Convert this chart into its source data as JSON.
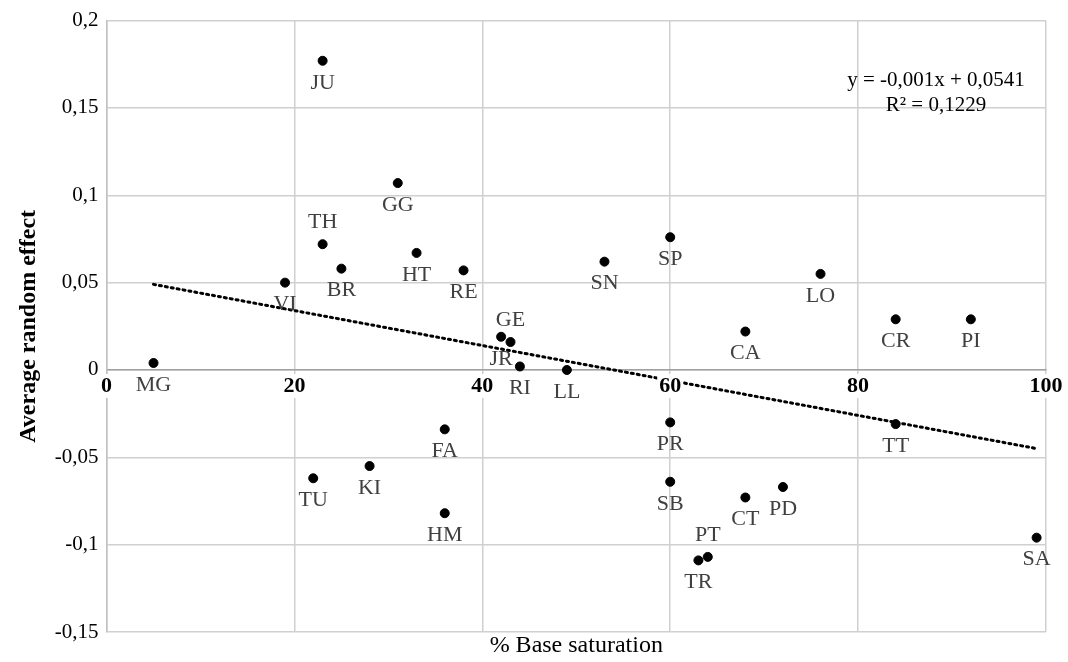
{
  "chart_data": {
    "type": "scatter",
    "xlabel": "% Base saturation",
    "ylabel": "Average random effect",
    "xlim": [
      0,
      100
    ],
    "xticks": [
      0,
      20,
      40,
      60,
      80,
      100
    ],
    "ylim": [
      -0.15,
      0.2
    ],
    "yticks": [
      {
        "value": -0.15,
        "label": "-0,15"
      },
      {
        "value": -0.1,
        "label": "-0,1"
      },
      {
        "value": -0.05,
        "label": "-0,05"
      },
      0,
      {
        "value": 0.05,
        "label": "0,05"
      },
      {
        "value": 0.1,
        "label": "0,1"
      },
      {
        "value": 0.15,
        "label": "0,15"
      },
      {
        "value": 0.2,
        "label": "0,2"
      }
    ],
    "grid": true,
    "series": [
      {
        "type": "scatter",
        "color": "#000000",
        "marker": "circle",
        "x": [
          23,
          31,
          23,
          33,
          25,
          38,
          19,
          5,
          42,
          43,
          44,
          49,
          53,
          60,
          76,
          68,
          84,
          92,
          60,
          84,
          60,
          68,
          72,
          99,
          63,
          64,
          36,
          28,
          22,
          36
        ],
        "values": [
          0.177,
          0.107,
          0.072,
          0.067,
          0.058,
          0.057,
          0.05,
          0.004,
          0.019,
          0.016,
          0.002,
          0.0,
          0.062,
          0.076,
          0.055,
          0.022,
          0.029,
          0.029,
          -0.03,
          -0.031,
          -0.064,
          -0.073,
          -0.067,
          -0.096,
          -0.109,
          -0.107,
          -0.034,
          -0.055,
          -0.062,
          -0.082
        ]
      },
      {
        "type": "line",
        "color": "#000000",
        "marker": "none",
        "line_style": "dotted",
        "x": [
          5,
          99
        ],
        "values": [
          0.049,
          -0.045
        ]
      }
    ],
    "annotations": [
      {
        "text": "JU",
        "x": 23,
        "y": 0.177
      },
      {
        "text": "GG",
        "x": 31,
        "y": 0.107
      },
      {
        "text": "TH",
        "x": 23,
        "y": 0.072
      },
      {
        "text": "HT",
        "x": 33,
        "y": 0.067
      },
      {
        "text": "BR",
        "x": 25,
        "y": 0.058
      },
      {
        "text": "RE",
        "x": 38,
        "y": 0.057
      },
      {
        "text": "VI",
        "x": 19,
        "y": 0.05
      },
      {
        "text": "MG",
        "x": 5,
        "y": 0.004
      },
      {
        "text": "JR",
        "x": 42,
        "y": 0.019
      },
      {
        "text": "GE",
        "x": 43,
        "y": 0.016
      },
      {
        "text": "RI",
        "x": 44,
        "y": 0.002
      },
      {
        "text": "LL",
        "x": 49,
        "y": 0.0
      },
      {
        "text": "SN",
        "x": 53,
        "y": 0.062
      },
      {
        "text": "SP",
        "x": 60,
        "y": 0.076
      },
      {
        "text": "LO",
        "x": 76,
        "y": 0.055
      },
      {
        "text": "CA",
        "x": 68,
        "y": 0.022
      },
      {
        "text": "CR",
        "x": 84,
        "y": 0.029
      },
      {
        "text": "PI",
        "x": 92,
        "y": 0.029
      },
      {
        "text": "PR",
        "x": 60,
        "y": -0.03
      },
      {
        "text": "TT",
        "x": 84,
        "y": -0.031
      },
      {
        "text": "SB",
        "x": 60,
        "y": -0.064
      },
      {
        "text": "CT",
        "x": 68,
        "y": -0.073
      },
      {
        "text": "PD",
        "x": 72,
        "y": -0.067
      },
      {
        "text": "SA",
        "x": 99,
        "y": -0.096
      },
      {
        "text": "TR",
        "x": 63,
        "y": -0.109
      },
      {
        "text": "PT",
        "x": 64,
        "y": -0.107
      },
      {
        "text": "FA",
        "x": 36,
        "y": -0.034
      },
      {
        "text": "KI",
        "x": 28,
        "y": -0.055
      },
      {
        "text": "TU",
        "x": 22,
        "y": -0.062
      },
      {
        "text": "HM",
        "x": 36,
        "y": -0.082
      },
      "y = -0,001x + 0,0541",
      "R² = 0,1229"
    ]
  }
}
